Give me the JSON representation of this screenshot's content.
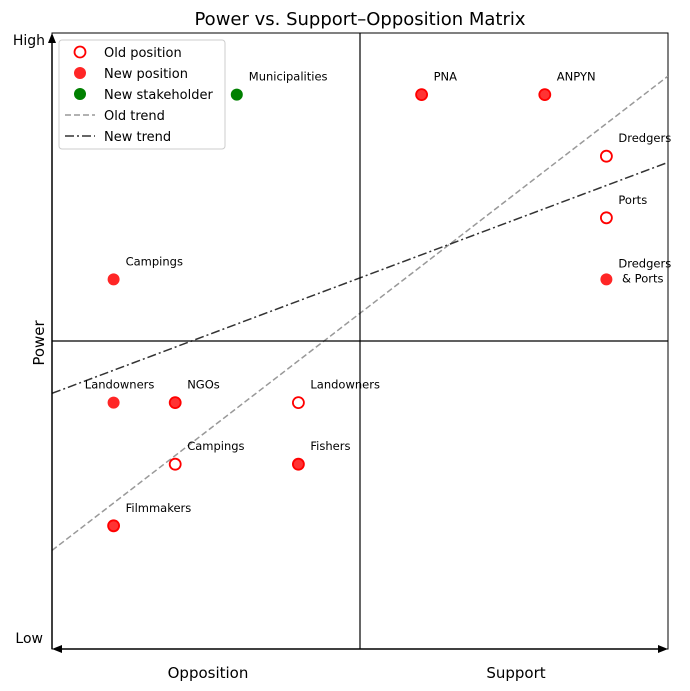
{
  "chart_data": {
    "type": "scatter",
    "title": "Power vs. Support–Opposition Matrix",
    "xlabel": "",
    "ylabel": "Power",
    "xlim": [
      0,
      10
    ],
    "ylim": [
      0,
      10
    ],
    "x_midline": 5,
    "y_midline": 5,
    "y_tick_labels": {
      "low": "Low",
      "high": "High"
    },
    "x_region_labels": [
      "Opposition",
      "Support"
    ],
    "legend": {
      "placement": "top-left",
      "entries": [
        {
          "label": "Old position",
          "kind": "marker",
          "style": "old"
        },
        {
          "label": "New position",
          "kind": "marker",
          "style": "new"
        },
        {
          "label": "New stakeholder",
          "kind": "marker",
          "style": "stakeholder"
        },
        {
          "label": "Old trend",
          "kind": "line",
          "style": "old_trend"
        },
        {
          "label": "New trend",
          "kind": "line",
          "style": "new_trend"
        }
      ]
    },
    "colors": {
      "new": "#ff0000",
      "old_edge": "#ff0000",
      "stakeholder": "#008000",
      "old_trend": "#999999",
      "new_trend": "#333333"
    },
    "points": [
      {
        "label": "Municipalities",
        "x": 3,
        "y": 9,
        "style": "stakeholder"
      },
      {
        "label": "PNA",
        "x": 6,
        "y": 9,
        "style": "new_over_old"
      },
      {
        "label": "ANPYN",
        "x": 8,
        "y": 9,
        "style": "new_over_old"
      },
      {
        "label": "Dredgers",
        "x": 9,
        "y": 8,
        "style": "old"
      },
      {
        "label": "Ports",
        "x": 9,
        "y": 7,
        "style": "old"
      },
      {
        "label": "Dredgers\n & Ports",
        "x": 9,
        "y": 6,
        "style": "new"
      },
      {
        "label": "Campings",
        "x": 1,
        "y": 6,
        "style": "new"
      },
      {
        "label": "Landowners",
        "x": 1,
        "y": 4,
        "style": "new",
        "label_pos": "above"
      },
      {
        "label": "NGOs",
        "x": 2,
        "y": 4,
        "style": "new_over_old"
      },
      {
        "label": "Landowners",
        "x": 4,
        "y": 4,
        "style": "old"
      },
      {
        "label": "Campings",
        "x": 2,
        "y": 3,
        "style": "old"
      },
      {
        "label": "Fishers",
        "x": 4,
        "y": 3,
        "style": "new_over_old"
      },
      {
        "label": "Filmmakers",
        "x": 1,
        "y": 2,
        "style": "new_over_old"
      }
    ],
    "trends": [
      {
        "name": "Old trend",
        "style": "old_trend",
        "x": [
          0,
          10
        ],
        "y": [
          1.6,
          9.3
        ]
      },
      {
        "name": "New trend",
        "style": "new_trend",
        "x": [
          0,
          10
        ],
        "y": [
          4.15,
          7.9
        ]
      }
    ]
  }
}
